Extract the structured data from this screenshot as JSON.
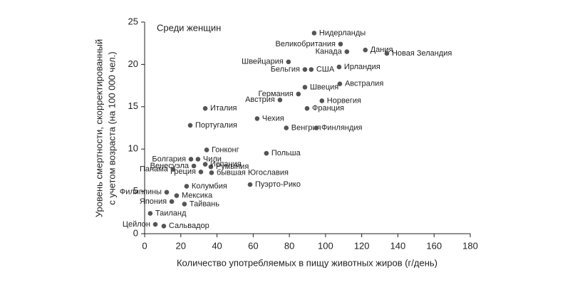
{
  "chart_data": {
    "type": "scatter",
    "annotation": "Среди женщин",
    "x_label": "Количество употребляемых в пищу животных жиров (г/день)",
    "y_label": [
      "Уровень смертности, скорректированный",
      "с учетом возраста (на 100 000 чел.)"
    ],
    "xlim": [
      0,
      180
    ],
    "xticks": [
      0,
      20,
      40,
      60,
      80,
      100,
      120,
      140,
      160,
      180
    ],
    "ylim": [
      0,
      25
    ],
    "yticks": [
      0,
      5,
      10,
      15,
      20,
      25
    ],
    "color": "#555555",
    "points": [
      {
        "label": "Нидерланды",
        "x": 93.7,
        "y": 23.7
      },
      {
        "label": "Великобритания",
        "x": 108.3,
        "y": 22.4
      },
      {
        "label": "Дания",
        "x": 122,
        "y": 21.7
      },
      {
        "label": "Канада",
        "x": 111.8,
        "y": 21.5
      },
      {
        "label": "Новая Зеландия",
        "x": 133.9,
        "y": 21.3
      },
      {
        "label": "Швейцария",
        "x": 79.5,
        "y": 20.3
      },
      {
        "label": "Ирландия",
        "x": 107.5,
        "y": 19.7
      },
      {
        "label": "Бельгия",
        "x": 88.6,
        "y": 19.4
      },
      {
        "label": "США",
        "x": 92.1,
        "y": 19.4
      },
      {
        "label": "Швеция",
        "x": 88.6,
        "y": 17.3
      },
      {
        "label": "Австралия",
        "x": 107.9,
        "y": 17.7
      },
      {
        "label": "Германия",
        "x": 85,
        "y": 16.5
      },
      {
        "label": "Норвегия",
        "x": 98,
        "y": 15.7
      },
      {
        "label": "Австрия",
        "x": 74.8,
        "y": 15.8
      },
      {
        "label": "Франция",
        "x": 89.8,
        "y": 14.8
      },
      {
        "label": "Италия",
        "x": 33.5,
        "y": 14.8
      },
      {
        "label": "Чехия",
        "x": 62.2,
        "y": 13.6
      },
      {
        "label": "Португалия",
        "x": 25.2,
        "y": 12.8
      },
      {
        "label": "Венгрия",
        "x": 78.3,
        "y": 12.5
      },
      {
        "label": "Финляндия",
        "x": 94.9,
        "y": 12.5
      },
      {
        "label": "Гонконг",
        "x": 34.3,
        "y": 9.9
      },
      {
        "label": "Польша",
        "x": 67.3,
        "y": 9.5
      },
      {
        "label": "Болгария",
        "x": 25.6,
        "y": 8.8
      },
      {
        "label": "Чили",
        "x": 29.5,
        "y": 8.8
      },
      {
        "label": "Венесуэла",
        "x": 27.2,
        "y": 8.0
      },
      {
        "label": "Румыния",
        "x": 36.6,
        "y": 7.9
      },
      {
        "label": "Испания",
        "x": 33.5,
        "y": 8.2
      },
      {
        "label": "Греция",
        "x": 31.1,
        "y": 7.3
      },
      {
        "label": "Панама",
        "x": 15.7,
        "y": 7.6
      },
      {
        "label": "бывшая Югославия",
        "x": 37,
        "y": 7.2
      },
      {
        "label": "Колумбия",
        "x": 23.2,
        "y": 5.6
      },
      {
        "label": "Филиппины",
        "x": 12.2,
        "y": 4.9
      },
      {
        "label": "Мексика",
        "x": 17.7,
        "y": 4.5
      },
      {
        "label": "Япония",
        "x": 15,
        "y": 3.8
      },
      {
        "label": "Тайвань",
        "x": 22,
        "y": 3.5
      },
      {
        "label": "Цейлон",
        "x": 5.9,
        "y": 1.1
      },
      {
        "label": "Таиланд",
        "x": 3.1,
        "y": 2.4
      },
      {
        "label": "Сальвадор",
        "x": 10.6,
        "y": 0.9
      },
      {
        "label": "Пуэрто-Рико",
        "x": 58.3,
        "y": 5.8
      }
    ]
  }
}
